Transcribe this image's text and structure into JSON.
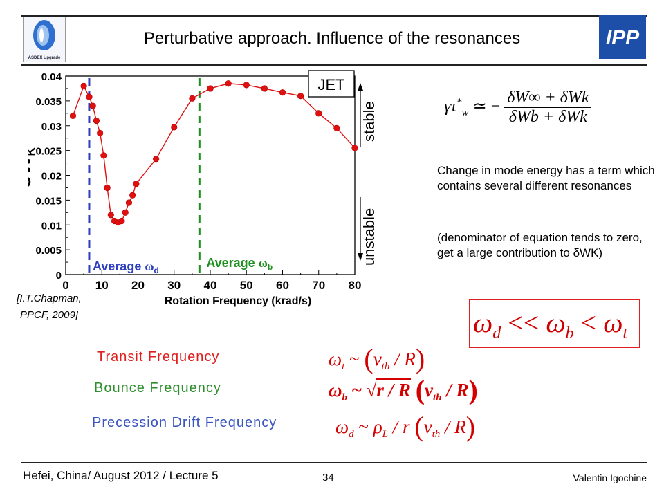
{
  "header": {
    "title": "Perturbative approach. Influence of the resonances",
    "left_logo_text": "ASDEX Upgrade",
    "right_logo_text": "IPP"
  },
  "chart_data": {
    "type": "line",
    "title": "",
    "xlabel": "Rotation Frequency (krad/s)",
    "ylabel": "δWK",
    "xlim": [
      0,
      80
    ],
    "ylim": [
      0,
      0.04
    ],
    "xticks": [
      "0",
      "10",
      "20",
      "30",
      "40",
      "50",
      "60",
      "70",
      "80"
    ],
    "yticks": [
      "0",
      "0.005",
      "0.01",
      "0.015",
      "0.02",
      "0.025",
      "0.03",
      "0.035",
      "0.04"
    ],
    "grid": false,
    "series": [
      {
        "color": "#e01010",
        "x": [
          2,
          5,
          6.5,
          7.5,
          8.5,
          9.5,
          10.5,
          11.5,
          12.5,
          13.5,
          14.5,
          15.5,
          16.5,
          17.5,
          18.5,
          19.5,
          25,
          30,
          35,
          40,
          45,
          50,
          55,
          60,
          65,
          70,
          75,
          80
        ],
        "y": [
          0.032,
          0.038,
          0.0358,
          0.034,
          0.031,
          0.0285,
          0.024,
          0.0175,
          0.012,
          0.0108,
          0.0105,
          0.0108,
          0.0125,
          0.0145,
          0.016,
          0.0183,
          0.0233,
          0.0297,
          0.0355,
          0.0375,
          0.0385,
          0.0382,
          0.0375,
          0.0367,
          0.036,
          0.0325,
          0.0295,
          0.0255
        ]
      }
    ],
    "vlines": [
      {
        "x": 6.5,
        "color": "#2d3fbf",
        "label": "Average ωd"
      },
      {
        "x": 37,
        "color": "#1f8f1f",
        "label": "Average ωb"
      }
    ],
    "annotations": {
      "box_label": "JET",
      "stable": "stable",
      "unstable": "unstable"
    }
  },
  "equations": {
    "gamma": {
      "lhs": "γτ",
      "sup": "*",
      "sub": "w",
      "rel": "≃ −",
      "num": "δW∞ + δWk",
      "den": "δWb + δWk"
    },
    "ineq": {
      "w": "ω",
      "d": "d",
      "b": "b",
      "t": "t",
      "ll": "<<",
      "lt": "<"
    },
    "transit": {
      "lhs": "ω",
      "lhs_sub": "t",
      "rel": " ~ ",
      "open": "(",
      "v": "v",
      "v_sub": "th",
      "div": " / R",
      "close": ")"
    },
    "bounce": {
      "lhs": "ω",
      "lhs_sub": "b",
      "rel": " ~ ",
      "root": "√",
      "rad": "r / R",
      "open": "(",
      "v": "v",
      "v_sub": "th",
      "div": " / R",
      "close": ")"
    },
    "precession": {
      "lhs": "ω",
      "lhs_sub": "d",
      "rel": " ~ ",
      "rho": "ρ",
      "rho_sub": "L",
      "div1": " / r ",
      "open": "(",
      "v": "v",
      "v_sub": "th",
      "div": " / R",
      "close": ")"
    }
  },
  "text": {
    "desc1": "Change in mode energy has a term which contains several different resonances",
    "desc2": "(denominator of equation tends to zero, get a large contribution to δWK)",
    "transit_label": "Transit Frequency",
    "bounce_label": "Bounce Frequency",
    "precession_label": "Precession Drift Frequency",
    "citation": "[I.T.Chapman, PPCF, 2009]"
  },
  "footer": {
    "left": "Hefei, China/ August 2012 / Lecture 5",
    "page": "34",
    "right": "Valentin Igochine"
  }
}
